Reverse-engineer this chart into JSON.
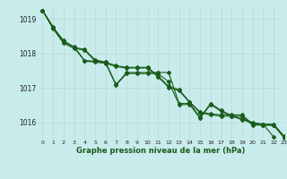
{
  "title": "Graphe pression niveau de la mer (hPa)",
  "bg_color": "#c8ecec",
  "grid_color": "#c0d8d8",
  "line_color": "#1a5c1a",
  "xlim": [
    -0.5,
    23
  ],
  "ylim": [
    1015.5,
    1019.4
  ],
  "yticks": [
    1016,
    1017,
    1018,
    1019
  ],
  "xticks": [
    0,
    1,
    2,
    3,
    4,
    5,
    6,
    7,
    8,
    9,
    10,
    11,
    12,
    13,
    14,
    15,
    16,
    17,
    18,
    19,
    20,
    21,
    22,
    23
  ],
  "marker": "D",
  "markersize": 2.0,
  "linewidth": 0.8,
  "series": {
    "line1_x": [
      0,
      1,
      2,
      3,
      4,
      5,
      6,
      7,
      8,
      9,
      10,
      11,
      12,
      13,
      14,
      15,
      16,
      17,
      18,
      19,
      20,
      21,
      22
    ],
    "line1_y": [
      1019.25,
      1018.78,
      1018.35,
      1018.2,
      1017.8,
      1017.78,
      1017.75,
      1017.1,
      1017.45,
      1017.45,
      1017.45,
      1017.45,
      1017.45,
      1016.55,
      1016.55,
      1016.15,
      1016.55,
      1016.35,
      1016.2,
      1016.1,
      1016.0,
      1015.95,
      1015.58
    ],
    "line2_x": [
      0,
      1,
      2,
      3,
      4,
      5,
      6,
      7,
      8,
      9,
      10,
      11,
      12,
      13,
      14,
      15,
      16,
      17,
      18,
      19,
      20,
      21,
      22,
      23
    ],
    "line2_y": [
      1019.25,
      1018.75,
      1018.35,
      1018.18,
      1017.78,
      1017.75,
      1017.72,
      1017.08,
      1017.42,
      1017.42,
      1017.42,
      1017.42,
      1017.18,
      1016.52,
      1016.52,
      1016.12,
      1016.52,
      1016.32,
      1016.18,
      1016.08,
      1015.98,
      1015.92,
      1015.92,
      1015.55
    ],
    "line3_x": [
      0,
      1,
      2,
      3,
      4,
      5,
      6,
      7,
      8,
      9,
      10,
      11,
      12,
      13,
      14,
      15,
      16,
      17,
      18,
      19,
      20,
      21,
      22,
      23
    ],
    "line3_y": [
      1019.25,
      1018.72,
      1018.3,
      1018.15,
      1018.1,
      1017.78,
      1017.72,
      1017.62,
      1017.58,
      1017.58,
      1017.58,
      1017.32,
      1017.02,
      1016.92,
      1016.58,
      1016.28,
      1016.22,
      1016.18,
      1016.18,
      1016.18,
      1015.92,
      1015.92,
      1015.92,
      1015.58
    ],
    "line4_x": [
      0,
      1,
      2,
      3,
      4,
      5,
      6,
      7,
      8,
      9,
      10,
      11,
      12,
      13,
      14,
      15,
      16,
      17,
      18,
      19,
      20,
      21,
      22,
      23
    ],
    "line4_y": [
      1019.25,
      1018.75,
      1018.38,
      1018.18,
      1018.12,
      1017.82,
      1017.75,
      1017.65,
      1017.6,
      1017.6,
      1017.6,
      1017.35,
      1017.05,
      1016.95,
      1016.6,
      1016.3,
      1016.25,
      1016.22,
      1016.22,
      1016.22,
      1015.95,
      1015.95,
      1015.95,
      1015.6
    ]
  }
}
